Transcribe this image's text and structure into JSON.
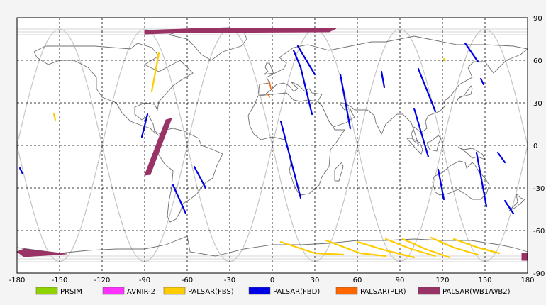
{
  "colors": {
    "background": "#f4f4f4",
    "map_bg": "#ffffff",
    "coast": "#707070",
    "orbit": "#c8c8c8",
    "grid": "#000000"
  },
  "axes": {
    "x_ticks": [
      "-180",
      "-150",
      "-120",
      "-90",
      "-60",
      "-30",
      "0",
      "30",
      "60",
      "90",
      "120",
      "150",
      "180"
    ],
    "y_ticks": [
      "90",
      "60",
      "30",
      "0",
      "-30",
      "-60",
      "-90"
    ]
  },
  "legend": [
    {
      "label": "PRSIM",
      "color": "#8fd400"
    },
    {
      "label": "AVNIR-2",
      "color": "#ff33ff"
    },
    {
      "label": "PALSAR(FBS)",
      "color": "#ffcc00"
    },
    {
      "label": "PALSAR(FBD)",
      "color": "#0000e6"
    },
    {
      "label": "PALSAR(PLR)",
      "color": "#ff6600"
    },
    {
      "label": "PALSAR(WB1/WB2)",
      "color": "#993366"
    }
  ],
  "swaths": {
    "wb": [
      {
        "pts": [
          [
            -90,
            81
          ],
          [
            -50,
            82.5
          ],
          [
            45,
            82.5
          ],
          [
            40,
            80
          ],
          [
            -60,
            79.5
          ],
          [
            -90,
            78.5
          ]
        ]
      },
      {
        "pts": [
          [
            -75,
            18
          ],
          [
            -71,
            19
          ],
          [
            -86,
            -20.5
          ],
          [
            -90,
            -21
          ]
        ]
      },
      {
        "pts": [
          [
            -180,
            -75
          ],
          [
            -175,
            -78.5
          ],
          [
            -145,
            -76.5
          ],
          [
            -175,
            -73
          ]
        ]
      },
      {
        "pts": [
          [
            176,
            -76
          ],
          [
            180,
            -76
          ],
          [
            180,
            -81
          ],
          [
            176,
            -81
          ]
        ]
      }
    ],
    "fbd": [
      [
        [
          15,
          67
        ],
        [
          20,
          55
        ],
        [
          28,
          22
        ]
      ],
      [
        [
          18,
          70
        ],
        [
          30,
          50
        ]
      ],
      [
        [
          48,
          50
        ],
        [
          55,
          12
        ]
      ],
      [
        [
          6,
          17
        ],
        [
          20,
          -37
        ]
      ],
      [
        [
          103,
          54
        ],
        [
          115,
          24
        ]
      ],
      [
        [
          136,
          72
        ],
        [
          145,
          59
        ]
      ],
      [
        [
          100,
          26
        ],
        [
          110,
          -8
        ]
      ],
      [
        [
          -88,
          22
        ],
        [
          -92,
          6
        ]
      ],
      [
        [
          -70,
          -28
        ],
        [
          -61,
          -48
        ]
      ],
      [
        [
          -55,
          -15
        ],
        [
          -47,
          -30
        ]
      ],
      [
        [
          77,
          52
        ],
        [
          79,
          41
        ]
      ],
      [
        [
          144,
          -5
        ],
        [
          151,
          -43
        ]
      ],
      [
        [
          117,
          -17
        ],
        [
          121,
          -38
        ]
      ],
      [
        [
          164,
          -39
        ],
        [
          170,
          -48
        ]
      ],
      [
        [
          159,
          -5
        ],
        [
          164,
          -12
        ]
      ],
      [
        [
          -178,
          -16
        ],
        [
          -176,
          -20
        ]
      ],
      [
        [
          147,
          47
        ],
        [
          149,
          43
        ]
      ]
    ],
    "fbs": [
      [
        [
          -80,
          65
        ],
        [
          -85,
          38
        ]
      ],
      [
        [
          -154,
          22
        ],
        [
          -153,
          18
        ]
      ],
      [
        [
          6,
          -68
        ],
        [
          30,
          -76
        ],
        [
          50,
          -77
        ]
      ],
      [
        [
          38,
          -67
        ],
        [
          62,
          -76
        ],
        [
          80,
          -78
        ]
      ],
      [
        [
          60,
          -68
        ],
        [
          80,
          -74
        ],
        [
          100,
          -79
        ]
      ],
      [
        [
          80,
          -66
        ],
        [
          98,
          -73
        ],
        [
          115,
          -78
        ]
      ],
      [
        [
          92,
          -66
        ],
        [
          108,
          -73
        ],
        [
          125,
          -79
        ]
      ],
      [
        [
          112,
          -65
        ],
        [
          128,
          -72
        ],
        [
          145,
          -77
        ]
      ],
      [
        [
          128,
          -66
        ],
        [
          145,
          -72
        ],
        [
          160,
          -76
        ]
      ],
      [
        [
          121,
          61
        ],
        [
          122,
          60
        ]
      ]
    ],
    "plr": [
      [
        [
          -2,
          45
        ],
        [
          -1,
          40
        ]
      ],
      [
        [
          -3,
          36
        ],
        [
          -2,
          34
        ]
      ]
    ]
  },
  "orbit_offsets": [
    -180,
    -120,
    -60,
    0,
    60,
    120,
    180
  ]
}
